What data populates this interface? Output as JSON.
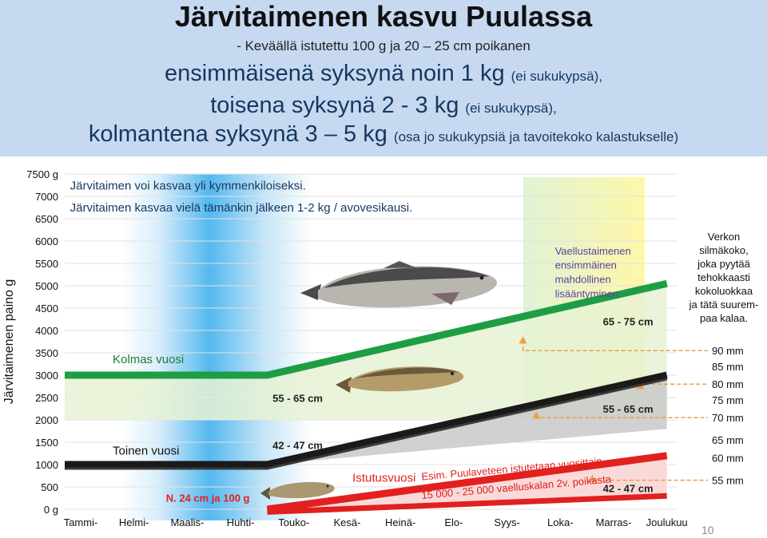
{
  "header": {
    "title": "Järvitaimenen kasvu Puulassa",
    "subtitle": "- Keväällä istutettu 100 g ja 20 – 25 cm poikanen",
    "line1": {
      "main": "ensimmäisenä syksynä noin 1 kg",
      "note": "(ei sukukypsä),"
    },
    "line2": {
      "main": "toisena syksynä 2 - 3 kg",
      "note": "(ei sukukypsä),"
    },
    "line3": {
      "main": "kolmantena syksynä 3 – 5 kg",
      "note": "(osa jo sukukypsiä ja tavoitekoko kalastukselle)"
    }
  },
  "slide_number": "10",
  "colors": {
    "header_bg": "#c6d9f1",
    "green": "#1e9e44",
    "black": "#1a1a1a",
    "red": "#e1201f",
    "orange": "#e8a04a",
    "year3_band": "#e6f2d4",
    "year1_band": "#f8d4d2",
    "year2_band": "#c9c9c9"
  },
  "chart_data": {
    "type": "line",
    "ylabel": "Järvitaimenen paino g",
    "y_ticks": [
      "7500 g",
      "7000",
      "6500",
      "6000",
      "5500",
      "5000",
      "4500",
      "4000",
      "3500",
      "3000",
      "2500",
      "2000",
      "1500",
      "1000",
      "500",
      "0 g"
    ],
    "y_tick_values": [
      7500,
      7000,
      6500,
      6000,
      5500,
      5000,
      4500,
      4000,
      3500,
      3000,
      2500,
      2000,
      1500,
      1000,
      500,
      0
    ],
    "ylim": [
      0,
      7500
    ],
    "months": [
      "Tammi-",
      "Helmi-",
      "Maalis-",
      "Huhti-",
      "Touko-",
      "Kesä-",
      "Heinä-",
      "Elo-",
      "Syys-",
      "Loka-",
      "Marras-",
      "Joulukuu"
    ],
    "month_positions": [
      0,
      1,
      2,
      3,
      4,
      5,
      6,
      7,
      8,
      9,
      10,
      11
    ],
    "xlim": [
      -0.3,
      11.2
    ],
    "series": [
      {
        "name": "Kolmas vuosi",
        "color": "#1e9e44",
        "x": [
          -0.3,
          3.5,
          11.0
        ],
        "y": [
          3000,
          3000,
          5050
        ]
      },
      {
        "name": "Toinen vuosi",
        "color": "#1a1a1a",
        "x": [
          -0.3,
          3.5,
          11.0
        ],
        "y": [
          1000,
          1000,
          3000
        ]
      },
      {
        "name": "Istutusvuosi",
        "color": "#e1201f",
        "x": [
          3.5,
          11.0
        ],
        "y": [
          0,
          1200
        ]
      }
    ],
    "bands": [
      {
        "name": "year3",
        "x": [
          -0.3,
          3.5,
          11.0
        ],
        "upper": [
          3000,
          3000,
          5050
        ],
        "lower": [
          2000,
          2000,
          2000
        ]
      },
      {
        "name": "year2",
        "x": [
          3.5,
          11.0
        ],
        "upper": [
          1000,
          3000
        ],
        "lower": [
          1000,
          1800
        ]
      },
      {
        "name": "year1",
        "x": [
          3.5,
          11.0
        ],
        "upper": [
          0,
          1200
        ],
        "lower": [
          0,
          350
        ]
      }
    ],
    "annotations": [
      {
        "text": "Järvitaimen voi kasvaa yli kymmenkiloiseksi.",
        "x": -0.2,
        "y": 7150,
        "style": "heading"
      },
      {
        "text": "Järvitaimen kasvaa vielä tämänkin jälkeen 1-2 kg / avovesikausi.",
        "x": -0.2,
        "y": 6660,
        "style": "heading"
      },
      {
        "text": "Kolmas vuosi",
        "x": 0.6,
        "y": 3270,
        "style": "label"
      },
      {
        "text": "Toinen vuosi",
        "x": 0.6,
        "y": 1220,
        "style": "label"
      },
      {
        "text": "55 - 65 cm",
        "x": 3.6,
        "y": 2400,
        "style": "size"
      },
      {
        "text": "42 - 47 cm",
        "x": 3.6,
        "y": 1350,
        "style": "size"
      },
      {
        "text": "65 - 75 cm",
        "x": 9.8,
        "y": 4120,
        "style": "size"
      },
      {
        "text": "55 - 65 cm",
        "x": 9.8,
        "y": 2160,
        "style": "size"
      },
      {
        "text": "42 - 47 cm",
        "x": 9.8,
        "y": 380,
        "style": "size"
      },
      {
        "text": "Istutusvuosi",
        "x": 5.1,
        "y": 620,
        "style": "ist"
      },
      {
        "text": "N. 24 cm ja 100 g",
        "x": 1.6,
        "y": 170,
        "style": "redsmall"
      },
      {
        "text": "Esim. Puulaveteen istutetaan vuosittain",
        "x": 6.4,
        "y": 650,
        "style": "redrot"
      },
      {
        "text": "15 000 - 25 000 vaelluskalan 2v. poikasta",
        "x": 6.4,
        "y": 230,
        "style": "redrot"
      },
      {
        "text": "Vaellustaimenen",
        "x": 8.9,
        "y": 5700,
        "style": "note"
      },
      {
        "text": "ensimmäinen",
        "x": 8.9,
        "y": 5380,
        "style": "note"
      },
      {
        "text": "mahdollinen",
        "x": 8.9,
        "y": 5060,
        "style": "note"
      },
      {
        "text": "lisääntyminen",
        "x": 8.9,
        "y": 4740,
        "style": "note"
      }
    ],
    "mesh_legend": {
      "header": [
        "Verkon",
        "silmäkoko,",
        "joka pyytää",
        "tehokkaasti",
        "kokoluokkaa",
        "ja tätä suurem-",
        "paa kalaa."
      ],
      "sizes": [
        "90 mm",
        "85 mm",
        "80 mm",
        "75 mm",
        "70 mm",
        "65 mm",
        "60 mm",
        "55 mm"
      ],
      "size_values": [
        3550,
        3200,
        2800,
        2450,
        2050,
        1550,
        1150,
        650
      ]
    },
    "markers": [
      {
        "x": 8.3,
        "y": 3780,
        "target": 3550
      },
      {
        "x": 8.55,
        "y": 2100,
        "target": 2050
      },
      {
        "x": 10.5,
        "y": 2760,
        "target": 2800
      },
      {
        "x": 9.6,
        "y": 680,
        "target": 650
      }
    ]
  }
}
